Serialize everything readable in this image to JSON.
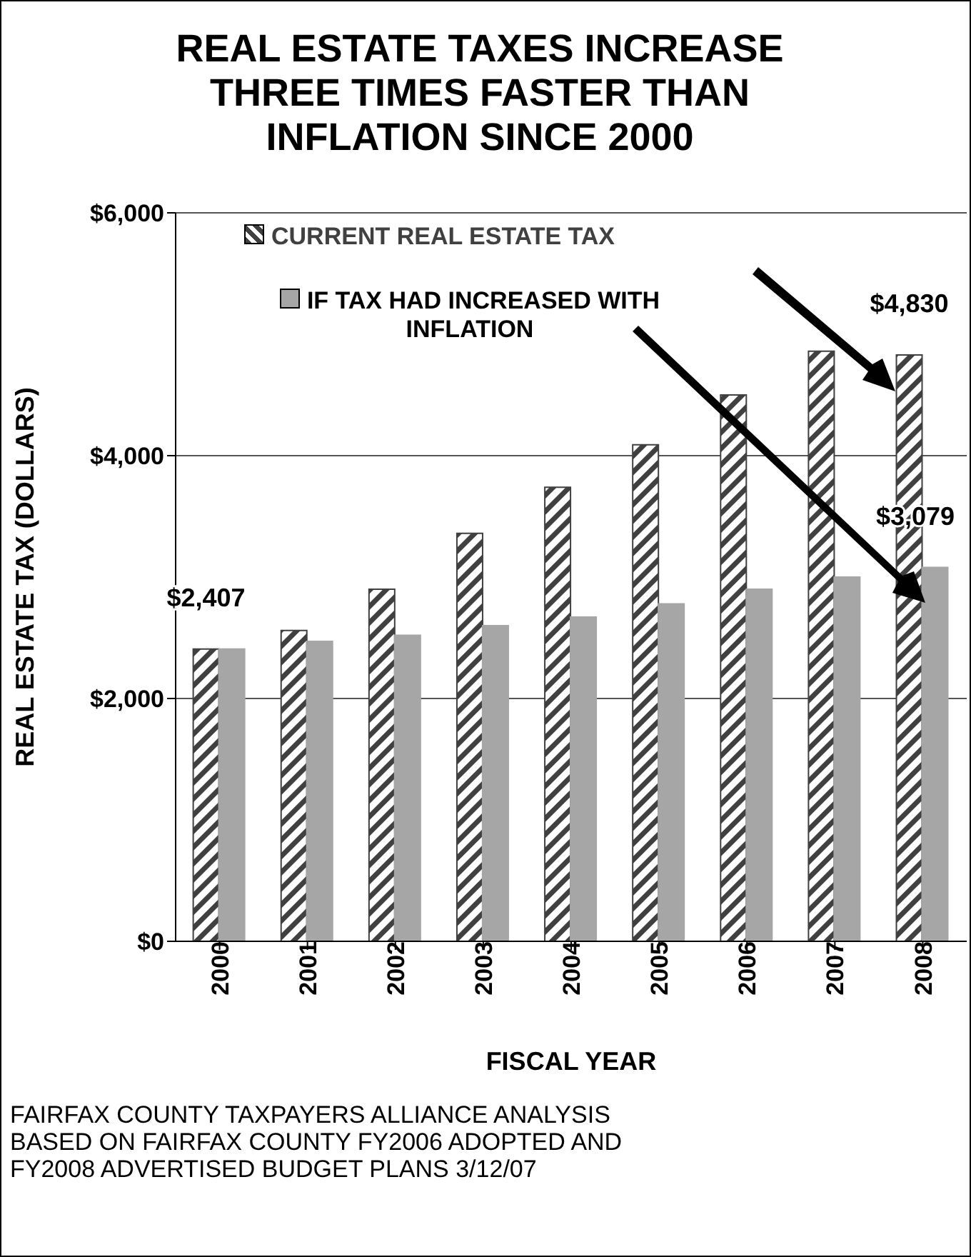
{
  "chart_data": {
    "type": "bar",
    "title": "REAL ESTATE TAXES  INCREASE THREE TIMES FASTER THAN INFLATION SINCE 2000",
    "xlabel": "FISCAL YEAR",
    "ylabel": "REAL ESTATE TAX (DOLLARS)",
    "categories": [
      "2000",
      "2001",
      "2002",
      "2003",
      "2004",
      "2005",
      "2006",
      "2007",
      "2008"
    ],
    "series": [
      {
        "name": "CURRENT REAL ESTATE TAX",
        "color": "#404040",
        "values": [
          2407,
          2560,
          2900,
          3360,
          3740,
          4090,
          4500,
          4860,
          4830
        ],
        "value_labels": [
          "$2,407",
          null,
          null,
          null,
          null,
          null,
          null,
          null,
          "$4,830"
        ]
      },
      {
        "name": "IF TAX HAD INCREASED WITH INFLATION",
        "color": "#a6a6a6",
        "values": [
          2407,
          2470,
          2520,
          2600,
          2670,
          2780,
          2900,
          3000,
          3079
        ],
        "value_labels": [
          null,
          null,
          null,
          null,
          null,
          null,
          null,
          null,
          "$3,079"
        ]
      }
    ],
    "ylim": [
      0,
      6000
    ],
    "yticks": [
      {
        "value": 0,
        "label": "$0"
      },
      {
        "value": 2000,
        "label": "$2,000"
      },
      {
        "value": 4000,
        "label": "$4,000"
      },
      {
        "value": 6000,
        "label": "$6,000"
      }
    ],
    "grid": "y",
    "legend": "top left",
    "annotations": [
      "FAIRFAX COUNTY TAXPAYERS ALLIANCE ANALYSIS BASED ON FAIRFAX COUNTY FY2006 ADOPTED  AND FY2008 ADVERTISED BUDGET PLANS  3/12/07"
    ]
  }
}
